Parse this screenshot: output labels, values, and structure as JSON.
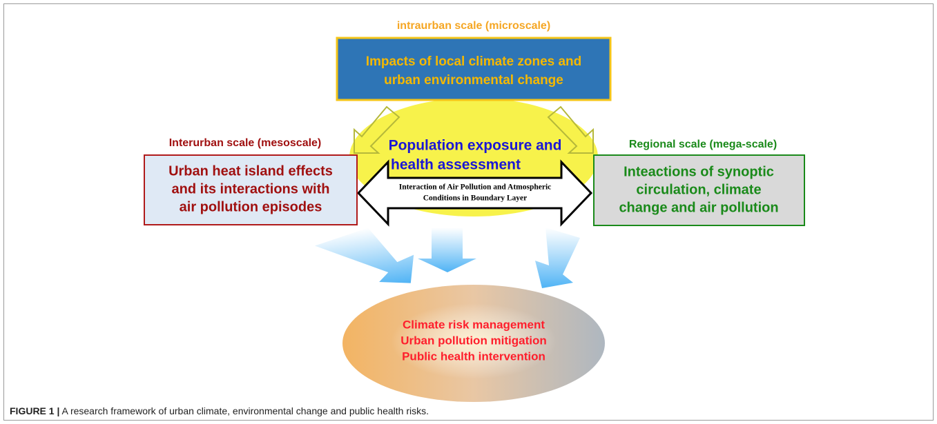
{
  "top": {
    "scale_label": "intraurban scale (microscale)",
    "lines": [
      "Impacts of local climate zones and",
      "urban environmental change"
    ]
  },
  "left": {
    "scale_label": "Interurban scale (mesoscale)",
    "lines": [
      "Urban heat island effects",
      "and its interactions with",
      "air pollution episodes"
    ]
  },
  "right": {
    "scale_label": "Regional scale (mega-scale)",
    "lines": [
      "Inteactions of synoptic",
      "circulation, climate",
      "change and air pollution"
    ]
  },
  "center": {
    "lines": [
      "Population exposure and",
      "health assessment"
    ]
  },
  "arrow": {
    "lines": [
      "Interaction of Air Pollution and Atmospheric",
      "Conditions in Boundary Layer"
    ]
  },
  "outcome": {
    "lines": [
      "Climate risk management",
      "Urban  pollution mitigation",
      "Public health intervention"
    ]
  },
  "caption": {
    "label": "FIGURE 1 |",
    "text": " A research framework of urban climate, environmental change and public health risks."
  }
}
